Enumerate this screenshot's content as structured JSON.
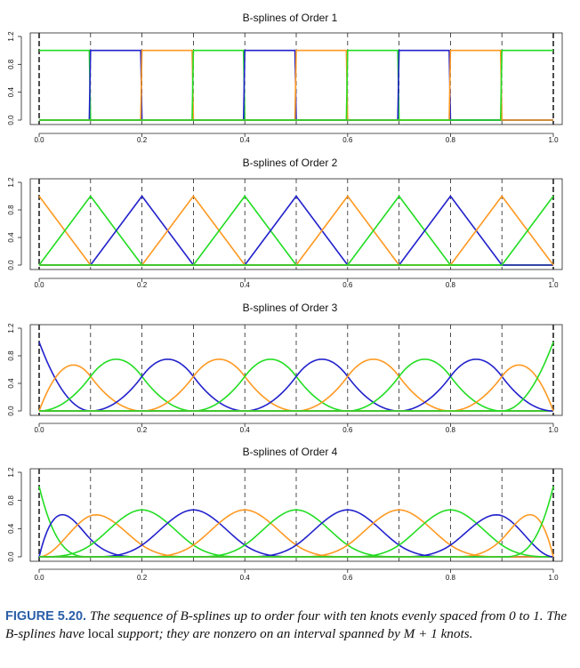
{
  "chart_data": [
    {
      "type": "line",
      "title": "B-splines of Order 1",
      "order": 1,
      "knots": [
        0.0,
        0.1,
        0.2,
        0.3,
        0.4,
        0.5,
        0.6,
        0.7,
        0.8,
        0.9,
        1.0
      ],
      "boundary_knots": [
        0.0,
        1.0
      ],
      "basis_count": 10,
      "series_colors": [
        "#22dd22",
        "#2222cc",
        "#ff9922"
      ],
      "xlim": [
        0,
        1
      ],
      "ylim": [
        0,
        1.2
      ],
      "xticks": [
        "0.0",
        "0.2",
        "0.4",
        "0.6",
        "0.8",
        "1.0"
      ],
      "yticks": [
        "0.0",
        "0.4",
        "0.8",
        "1.2"
      ],
      "xlabel": "",
      "ylabel": ""
    },
    {
      "type": "line",
      "title": "B-splines of Order 2",
      "order": 2,
      "knots": [
        0.0,
        0.1,
        0.2,
        0.3,
        0.4,
        0.5,
        0.6,
        0.7,
        0.8,
        0.9,
        1.0
      ],
      "boundary_knots": [
        0.0,
        1.0
      ],
      "basis_count": 11,
      "series_colors": [
        "#ff9922",
        "#22dd22",
        "#2222cc"
      ],
      "xlim": [
        0,
        1
      ],
      "ylim": [
        0,
        1.2
      ],
      "xticks": [
        "0.0",
        "0.2",
        "0.4",
        "0.6",
        "0.8",
        "1.0"
      ],
      "yticks": [
        "0.0",
        "0.4",
        "0.8",
        "1.2"
      ],
      "xlabel": "",
      "ylabel": ""
    },
    {
      "type": "line",
      "title": "B-splines of Order 3",
      "order": 3,
      "knots": [
        0.0,
        0.1,
        0.2,
        0.3,
        0.4,
        0.5,
        0.6,
        0.7,
        0.8,
        0.9,
        1.0
      ],
      "boundary_knots": [
        0.0,
        1.0
      ],
      "basis_count": 12,
      "series_colors": [
        "#2222cc",
        "#ff9922",
        "#22dd22"
      ],
      "xlim": [
        0,
        1
      ],
      "ylim": [
        0,
        1.2
      ],
      "xticks": [
        "0.0",
        "0.2",
        "0.4",
        "0.6",
        "0.8",
        "1.0"
      ],
      "yticks": [
        "0.0",
        "0.4",
        "0.8",
        "1.2"
      ],
      "xlabel": "",
      "ylabel": ""
    },
    {
      "type": "line",
      "title": "B-splines of Order 4",
      "order": 4,
      "knots": [
        0.0,
        0.1,
        0.2,
        0.3,
        0.4,
        0.5,
        0.6,
        0.7,
        0.8,
        0.9,
        1.0
      ],
      "boundary_knots": [
        0.0,
        1.0
      ],
      "basis_count": 13,
      "series_colors": [
        "#22dd22",
        "#2222cc",
        "#ff9922"
      ],
      "xlim": [
        0,
        1
      ],
      "ylim": [
        0,
        1.2
      ],
      "xticks": [
        "0.0",
        "0.2",
        "0.4",
        "0.6",
        "0.8",
        "1.0"
      ],
      "yticks": [
        "0.0",
        "0.4",
        "0.8",
        "1.2"
      ],
      "xlabel": "",
      "ylabel": ""
    }
  ],
  "caption": {
    "label": "FIGURE 5.20.",
    "text_1": " The sequence of B-splines up to order four with ten knots evenly spaced from 0 to 1. The B-splines have ",
    "local_support": "local",
    "text_2": " support; they are nonzero on an interval spanned by ",
    "math": "M + 1",
    "text_3": " knots."
  }
}
